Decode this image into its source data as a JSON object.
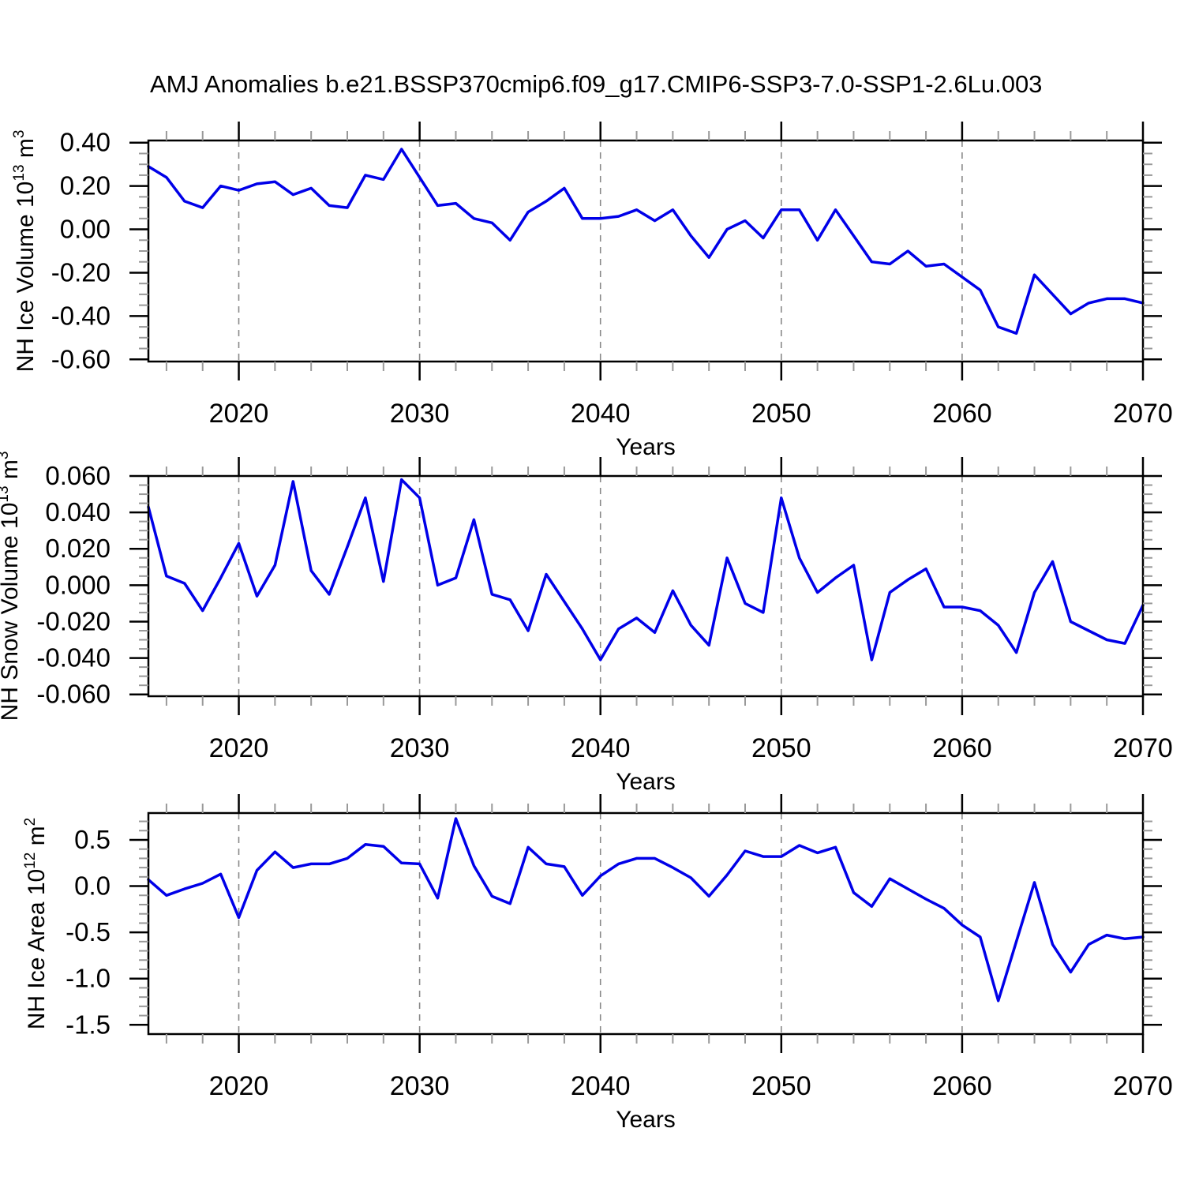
{
  "title": "AMJ Anomalies b.e21.BSSP370cmip6.f09_g17.CMIP6-SSP3-7.0-SSP1-2.6Lu.003",
  "xlabel": "Years",
  "style": {
    "line_color": "#0000e8",
    "grid_color": "#888888",
    "axis_color": "#000000",
    "minor_tick_color": "#999999",
    "background": "#ffffff"
  },
  "chart_data": [
    {
      "type": "line",
      "name": "nh-ice-volume",
      "ylabel_text": "NH Ice Volume 10^13 m^3",
      "ylabel": [
        {
          "t": "NH Ice Volume 10"
        },
        {
          "t": "13",
          "sup": true
        },
        {
          "t": " m"
        },
        {
          "t": "3",
          "sup": true
        }
      ],
      "xlim": [
        2015,
        2070
      ],
      "ylim": [
        -0.61,
        0.41
      ],
      "xticks": [
        2020,
        2030,
        2040,
        2050,
        2060,
        2070
      ],
      "xtick_labels": [
        "2020",
        "2030",
        "2040",
        "2050",
        "2060",
        "2070"
      ],
      "xminor_step": 2,
      "yticks": [
        0.4,
        0.2,
        0.0,
        -0.2,
        -0.4,
        -0.6
      ],
      "ytick_labels": [
        "0.40",
        "0.20",
        "0.00",
        "-0.20",
        "-0.40",
        "-0.60"
      ],
      "yminor_step": 0.05,
      "grid": "dashed-vertical-decades",
      "x": [
        2015,
        2016,
        2017,
        2018,
        2019,
        2020,
        2021,
        2022,
        2023,
        2024,
        2025,
        2026,
        2027,
        2028,
        2029,
        2030,
        2031,
        2032,
        2033,
        2034,
        2035,
        2036,
        2037,
        2038,
        2039,
        2040,
        2041,
        2042,
        2043,
        2044,
        2045,
        2046,
        2047,
        2048,
        2049,
        2050,
        2051,
        2052,
        2053,
        2054,
        2055,
        2056,
        2057,
        2058,
        2059,
        2060,
        2061,
        2062,
        2063,
        2064,
        2065,
        2066,
        2067,
        2068,
        2069,
        2070
      ],
      "values": [
        0.29,
        0.24,
        0.13,
        0.1,
        0.2,
        0.18,
        0.21,
        0.22,
        0.16,
        0.19,
        0.11,
        0.1,
        0.25,
        0.23,
        0.37,
        0.24,
        0.11,
        0.12,
        0.05,
        0.03,
        -0.05,
        0.08,
        0.13,
        0.19,
        0.05,
        0.05,
        0.06,
        0.09,
        0.04,
        0.09,
        -0.03,
        -0.13,
        0.0,
        0.04,
        -0.04,
        0.09,
        0.09,
        -0.05,
        0.09,
        -0.03,
        -0.15,
        -0.16,
        -0.1,
        -0.17,
        -0.16,
        -0.22,
        -0.28,
        -0.45,
        -0.48,
        -0.21,
        -0.3,
        -0.39,
        -0.34,
        -0.32,
        -0.32,
        -0.34
      ]
    },
    {
      "type": "line",
      "name": "nh-snow-volume",
      "ylabel_text": "NH Snow Volume 10^13 m^3",
      "ylabel": [
        {
          "t": "NH Snow Volume 10"
        },
        {
          "t": "13",
          "sup": true
        },
        {
          "t": " m"
        },
        {
          "t": "3",
          "sup": true
        }
      ],
      "xlim": [
        2015,
        2070
      ],
      "ylim": [
        -0.061,
        0.06
      ],
      "xticks": [
        2020,
        2030,
        2040,
        2050,
        2060,
        2070
      ],
      "xtick_labels": [
        "2020",
        "2030",
        "2040",
        "2050",
        "2060",
        "2070"
      ],
      "xminor_step": 2,
      "yticks": [
        0.06,
        0.04,
        0.02,
        0.0,
        -0.02,
        -0.04,
        -0.06
      ],
      "ytick_labels": [
        "0.060",
        "0.040",
        "0.020",
        "0.000",
        "-0.020",
        "-0.040",
        "-0.060"
      ],
      "yminor_step": 0.005,
      "grid": "dashed-vertical-decades",
      "x": [
        2015,
        2016,
        2017,
        2018,
        2019,
        2020,
        2021,
        2022,
        2023,
        2024,
        2025,
        2026,
        2027,
        2028,
        2029,
        2030,
        2031,
        2032,
        2033,
        2034,
        2035,
        2036,
        2037,
        2038,
        2039,
        2040,
        2041,
        2042,
        2043,
        2044,
        2045,
        2046,
        2047,
        2048,
        2049,
        2050,
        2051,
        2052,
        2053,
        2054,
        2055,
        2056,
        2057,
        2058,
        2059,
        2060,
        2061,
        2062,
        2063,
        2064,
        2065,
        2066,
        2067,
        2068,
        2069,
        2070
      ],
      "values": [
        0.043,
        0.005,
        0.001,
        -0.014,
        0.004,
        0.023,
        -0.006,
        0.011,
        0.057,
        0.008,
        -0.005,
        0.021,
        0.048,
        0.002,
        0.058,
        0.048,
        0.0,
        0.004,
        0.036,
        -0.005,
        -0.008,
        -0.025,
        0.006,
        -0.009,
        -0.024,
        -0.041,
        -0.024,
        -0.018,
        -0.026,
        -0.003,
        -0.022,
        -0.033,
        0.015,
        -0.01,
        -0.015,
        0.048,
        0.015,
        -0.004,
        0.004,
        0.011,
        -0.041,
        -0.004,
        0.003,
        0.009,
        -0.012,
        -0.012,
        -0.014,
        -0.022,
        -0.037,
        -0.004,
        0.013,
        -0.02,
        -0.025,
        -0.03,
        -0.032,
        -0.011
      ]
    },
    {
      "type": "line",
      "name": "nh-ice-area",
      "ylabel_text": "NH Ice Area 10^12 m^2",
      "ylabel": [
        {
          "t": "NH Ice Area 10"
        },
        {
          "t": "12",
          "sup": true
        },
        {
          "t": " m"
        },
        {
          "t": "2",
          "sup": true
        }
      ],
      "xlim": [
        2015,
        2070
      ],
      "ylim": [
        -1.6,
        0.79
      ],
      "xticks": [
        2020,
        2030,
        2040,
        2050,
        2060,
        2070
      ],
      "xtick_labels": [
        "2020",
        "2030",
        "2040",
        "2050",
        "2060",
        "2070"
      ],
      "xminor_step": 2,
      "yticks": [
        0.5,
        0.0,
        -0.5,
        -1.0,
        -1.5
      ],
      "ytick_labels": [
        "0.5",
        "0.0",
        "-0.5",
        "-1.0",
        "-1.5"
      ],
      "yminor_step": 0.1,
      "grid": "dashed-vertical-decades",
      "x": [
        2015,
        2016,
        2017,
        2018,
        2019,
        2020,
        2021,
        2022,
        2023,
        2024,
        2025,
        2026,
        2027,
        2028,
        2029,
        2030,
        2031,
        2032,
        2033,
        2034,
        2035,
        2036,
        2037,
        2038,
        2039,
        2040,
        2041,
        2042,
        2043,
        2044,
        2045,
        2046,
        2047,
        2048,
        2049,
        2050,
        2051,
        2052,
        2053,
        2054,
        2055,
        2056,
        2057,
        2058,
        2059,
        2060,
        2061,
        2062,
        2063,
        2064,
        2065,
        2066,
        2067,
        2068,
        2069,
        2070
      ],
      "values": [
        0.07,
        -0.1,
        -0.03,
        0.03,
        0.13,
        -0.34,
        0.17,
        0.37,
        0.2,
        0.24,
        0.24,
        0.3,
        0.45,
        0.43,
        0.25,
        0.24,
        -0.13,
        0.73,
        0.22,
        -0.11,
        -0.19,
        0.42,
        0.24,
        0.21,
        -0.1,
        0.11,
        0.24,
        0.3,
        0.3,
        0.2,
        0.09,
        -0.11,
        0.12,
        0.38,
        0.32,
        0.32,
        0.44,
        0.36,
        0.42,
        -0.07,
        -0.22,
        0.08,
        -0.03,
        -0.14,
        -0.24,
        -0.42,
        -0.55,
        -1.24,
        -0.6,
        0.04,
        -0.63,
        -0.93,
        -0.63,
        -0.53,
        -0.57,
        -0.55
      ]
    }
  ]
}
